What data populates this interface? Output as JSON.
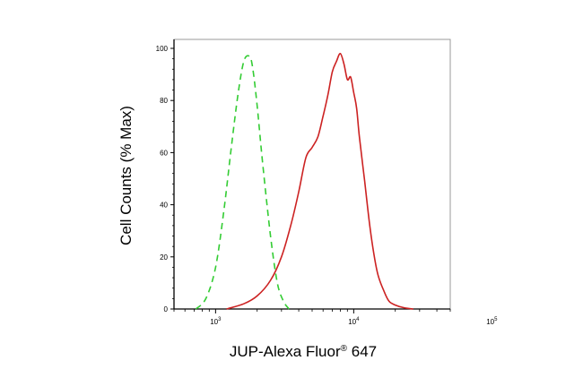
{
  "chart_data": {
    "type": "line",
    "title": "",
    "xlabel": "JUP-Alexa Fluor",
    "xlabel_mark": "®",
    "xlabel_suffix": " 647",
    "ylabel": "Cell Counts (% Max)",
    "x_scale": "log",
    "xlim": [
      500,
      50000
    ],
    "ylim": [
      0,
      100
    ],
    "grid": false,
    "x_ticks": [
      {
        "value": 1000,
        "base": "10",
        "exp": "3"
      },
      {
        "value": 10000,
        "base": "10",
        "exp": "4"
      },
      {
        "value": 100000,
        "base": "10",
        "exp": "5"
      }
    ],
    "y_ticks": [
      {
        "value": 0,
        "label": "0"
      },
      {
        "value": 20,
        "label": "20"
      },
      {
        "value": 40,
        "label": "40"
      },
      {
        "value": 60,
        "label": "60"
      },
      {
        "value": 80,
        "label": "80"
      },
      {
        "value": 100,
        "label": "100"
      }
    ],
    "series": [
      {
        "color": "#33cc33",
        "style": "dashed",
        "x": [
          720,
          850,
          1000,
          1150,
          1300,
          1450,
          1600,
          1750,
          1850,
          2000,
          2200,
          2500,
          2800,
          3100,
          3400
        ],
        "y": [
          0,
          4,
          16,
          38,
          62,
          82,
          95,
          97,
          93,
          78,
          55,
          28,
          10,
          3,
          0
        ]
      },
      {
        "color": "#cc2222",
        "style": "solid",
        "x": [
          1200,
          1600,
          2000,
          2500,
          3000,
          3500,
          4000,
          4500,
          5000,
          5500,
          6000,
          6500,
          7000,
          7500,
          8000,
          8500,
          9000,
          9500,
          10000,
          10500,
          11000,
          12000,
          13000,
          14000,
          15000,
          16500,
          18000,
          20000,
          23000,
          27000
        ],
        "y": [
          0,
          2,
          5,
          11,
          20,
          32,
          45,
          58,
          62,
          66,
          74,
          82,
          91,
          95,
          98,
          94,
          88,
          89,
          83,
          77,
          66,
          49,
          33,
          21,
          13,
          7,
          3,
          1.5,
          0.5,
          0
        ]
      }
    ]
  }
}
